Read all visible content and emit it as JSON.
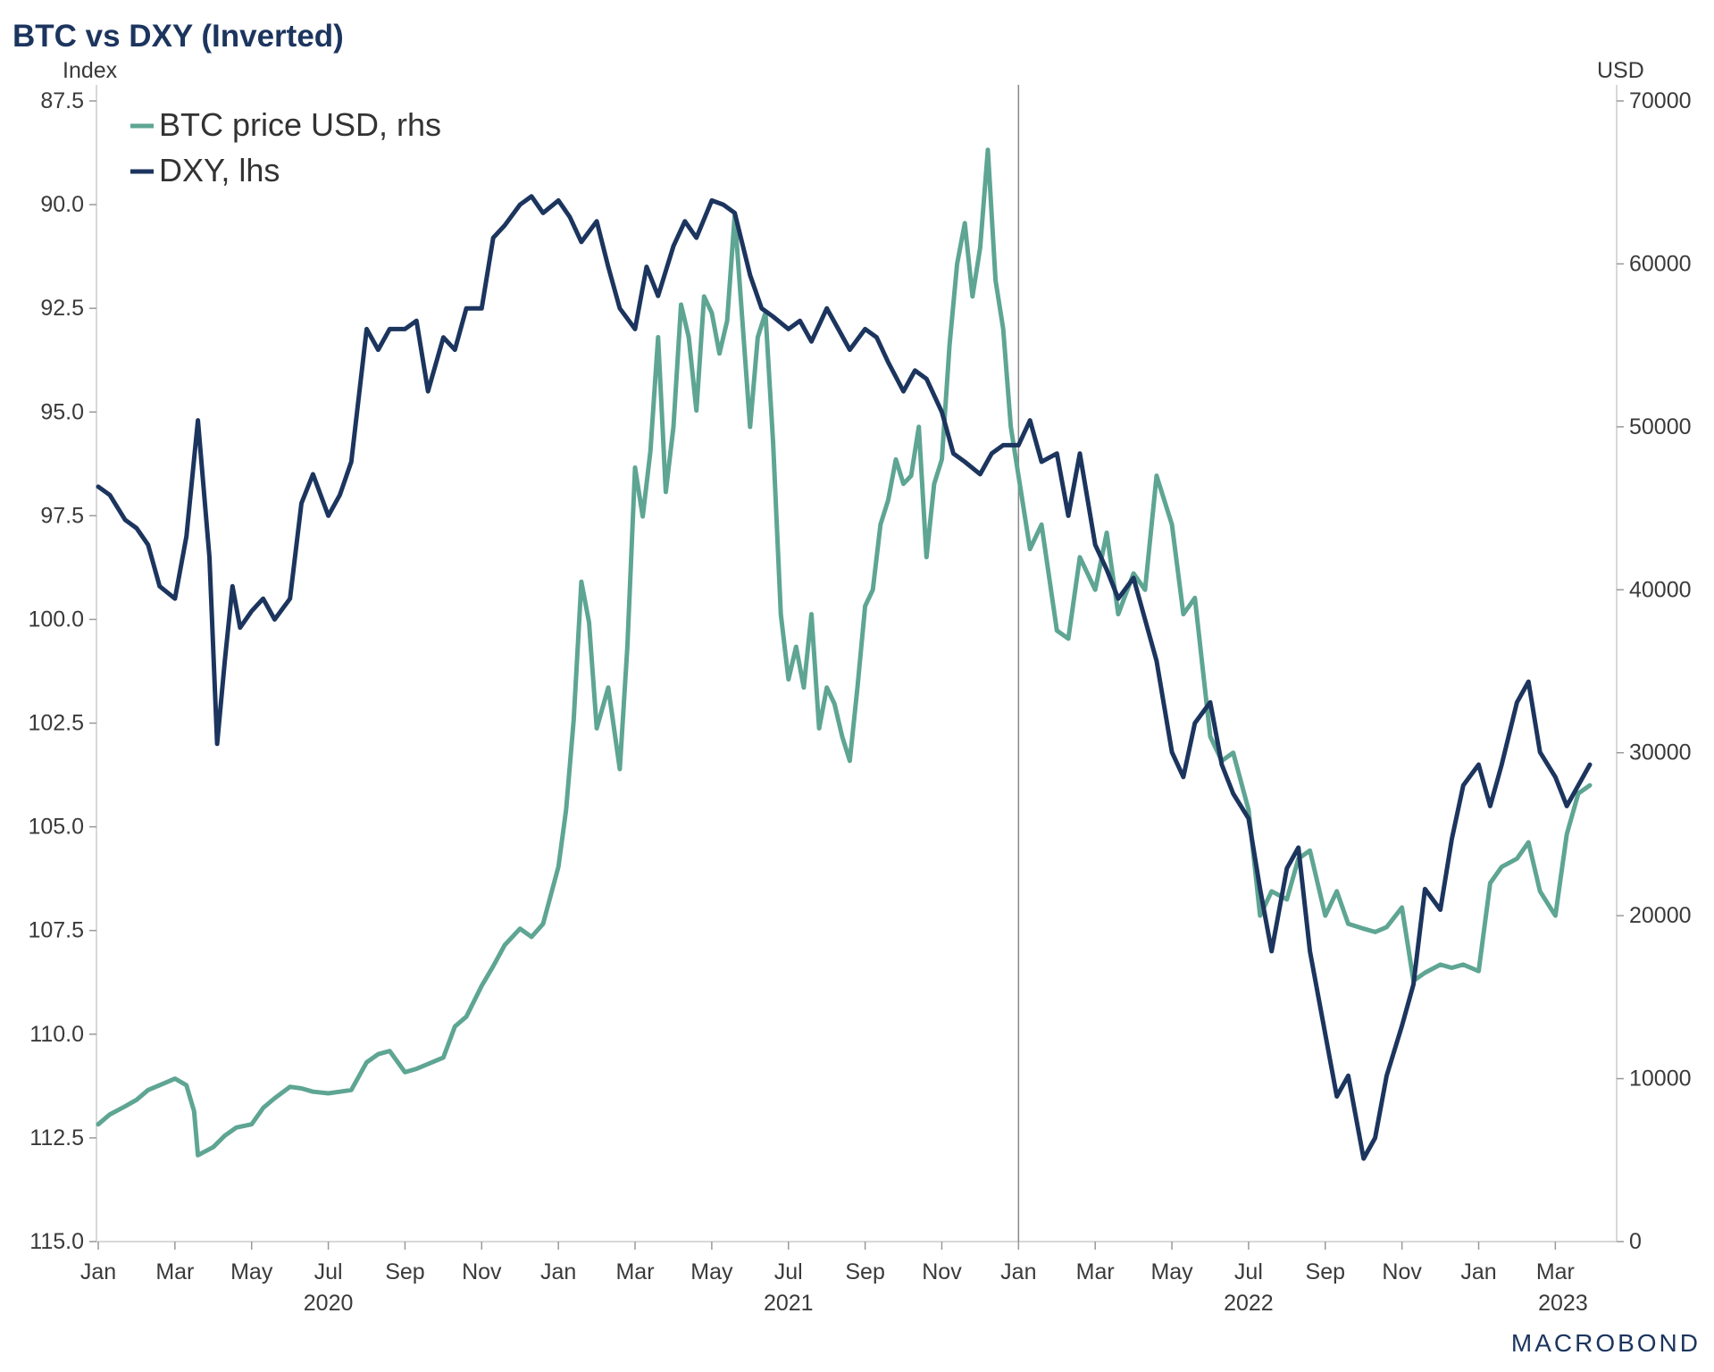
{
  "chart_data": {
    "type": "line",
    "title": "BTC vs DXY (Inverted)",
    "left_axis_label": "Index",
    "right_axis_label": "USD",
    "left_axis": {
      "min": 87.5,
      "max": 115.0,
      "inverted": true,
      "ticks": [
        "87.5",
        "90.0",
        "92.5",
        "95.0",
        "97.5",
        "100.0",
        "102.5",
        "105.0",
        "107.5",
        "110.0",
        "112.5",
        "115.0"
      ]
    },
    "right_axis": {
      "min": 0,
      "max": 70000,
      "ticks": [
        "0",
        "10000",
        "20000",
        "30000",
        "40000",
        "50000",
        "60000",
        "70000"
      ]
    },
    "x_range_months": [
      0,
      38.9
    ],
    "x_month_ticks": [
      "Jan",
      "Mar",
      "May",
      "Jul",
      "Sep",
      "Nov",
      "Jan",
      "Mar",
      "May",
      "Jul",
      "Sep",
      "Nov",
      "Jan",
      "Mar",
      "May",
      "Jul",
      "Sep",
      "Nov",
      "Jan",
      "Mar"
    ],
    "x_year_labels": [
      {
        "label": "2020",
        "month": 6
      },
      {
        "label": "2021",
        "month": 18
      },
      {
        "label": "2022",
        "month": 30
      },
      {
        "label": "2023",
        "month": 38.2
      }
    ],
    "vertical_line_month": 24,
    "legend": [
      {
        "label": "BTC price USD, rhs",
        "color": "#5ea593"
      },
      {
        "label": "DXY, lhs",
        "color": "#1c355e"
      }
    ],
    "series": [
      {
        "name": "BTC price USD, rhs",
        "axis": "right",
        "color": "#5ea593",
        "x": [
          0,
          0.3,
          0.7,
          1.0,
          1.3,
          1.6,
          2.0,
          2.3,
          2.4,
          2.5,
          2.6,
          3.0,
          3.3,
          3.6,
          4.0,
          4.3,
          4.6,
          5.0,
          5.3,
          5.6,
          6.0,
          6.3,
          6.6,
          7.0,
          7.3,
          7.6,
          8.0,
          8.3,
          8.6,
          9.0,
          9.3,
          9.6,
          10.0,
          10.3,
          10.6,
          11.0,
          11.3,
          11.6,
          12.0,
          12.2,
          12.4,
          12.6,
          12.8,
          13.0,
          13.3,
          13.6,
          13.8,
          14.0,
          14.2,
          14.4,
          14.6,
          14.8,
          15.0,
          15.2,
          15.4,
          15.6,
          15.8,
          16.0,
          16.2,
          16.4,
          16.6,
          16.8,
          17.0,
          17.2,
          17.4,
          17.6,
          17.8,
          18.0,
          18.2,
          18.4,
          18.6,
          18.8,
          19.0,
          19.2,
          19.4,
          19.6,
          19.8,
          20.0,
          20.2,
          20.4,
          20.6,
          20.8,
          21.0,
          21.2,
          21.4,
          21.6,
          21.8,
          22.0,
          22.2,
          22.4,
          22.6,
          22.8,
          23.0,
          23.2,
          23.4,
          23.6,
          23.8,
          24.0,
          24.3,
          24.6,
          25.0,
          25.3,
          25.6,
          26.0,
          26.3,
          26.6,
          27.0,
          27.3,
          27.6,
          28.0,
          28.3,
          28.6,
          29.0,
          29.3,
          29.6,
          30.0,
          30.3,
          30.6,
          31.0,
          31.3,
          31.6,
          32.0,
          32.3,
          32.6,
          33.0,
          33.3,
          33.6,
          34.0,
          34.3,
          34.6,
          35.0,
          35.3,
          35.6,
          36.0,
          36.3,
          36.6,
          37.0,
          37.3,
          37.6,
          38.0,
          38.3,
          38.6,
          38.9
        ],
        "values": [
          7200,
          7800,
          8300,
          8700,
          9300,
          9600,
          10000,
          9600,
          8800,
          8000,
          5300,
          5800,
          6500,
          7000,
          7200,
          8200,
          8800,
          9500,
          9400,
          9200,
          9100,
          9200,
          9300,
          11000,
          11500,
          11700,
          10400,
          10600,
          10900,
          11300,
          13200,
          13800,
          15700,
          16900,
          18200,
          19200,
          18700,
          19500,
          23000,
          26500,
          32000,
          40500,
          38000,
          31500,
          34000,
          29000,
          36500,
          47500,
          44500,
          48500,
          55500,
          46000,
          50000,
          57500,
          55500,
          51000,
          58000,
          57000,
          54500,
          56500,
          63000,
          56500,
          50000,
          55500,
          57000,
          49000,
          38500,
          34500,
          36500,
          34000,
          38500,
          31500,
          34000,
          33000,
          31000,
          29500,
          34000,
          39000,
          40000,
          44000,
          45500,
          48000,
          46500,
          47000,
          50000,
          42000,
          46500,
          48000,
          55000,
          60000,
          62500,
          58000,
          61000,
          67000,
          59000,
          56000,
          50000,
          47000,
          42500,
          44000,
          37500,
          37000,
          42000,
          40000,
          43500,
          38500,
          41000,
          40000,
          47000,
          44000,
          38500,
          39500,
          31000,
          29500,
          30000,
          26500,
          20000,
          21500,
          21000,
          23500,
          24000,
          20000,
          21500,
          19500,
          19200,
          19000,
          19300,
          20500,
          16000,
          16500,
          17000,
          16800,
          17000,
          16600,
          22000,
          23000,
          23500,
          24500,
          21500,
          20000,
          25000,
          27500,
          28000
        ]
      },
      {
        "name": "DXY, lhs",
        "axis": "left",
        "color": "#1c355e",
        "x": [
          0,
          0.3,
          0.7,
          1.0,
          1.3,
          1.6,
          2.0,
          2.3,
          2.6,
          2.9,
          3.1,
          3.3,
          3.5,
          3.7,
          4.0,
          4.3,
          4.6,
          5.0,
          5.3,
          5.6,
          6.0,
          6.3,
          6.6,
          7.0,
          7.3,
          7.6,
          8.0,
          8.3,
          8.6,
          9.0,
          9.3,
          9.6,
          10.0,
          10.3,
          10.6,
          11.0,
          11.3,
          11.6,
          12.0,
          12.3,
          12.6,
          13.0,
          13.3,
          13.6,
          14.0,
          14.3,
          14.6,
          15.0,
          15.3,
          15.6,
          16.0,
          16.3,
          16.6,
          17.0,
          17.3,
          17.6,
          18.0,
          18.3,
          18.6,
          19.0,
          19.3,
          19.6,
          20.0,
          20.3,
          20.6,
          21.0,
          21.3,
          21.6,
          22.0,
          22.3,
          22.6,
          23.0,
          23.3,
          23.6,
          24.0,
          24.3,
          24.6,
          25.0,
          25.3,
          25.6,
          26.0,
          26.3,
          26.6,
          27.0,
          27.3,
          27.6,
          28.0,
          28.3,
          28.6,
          29.0,
          29.3,
          29.6,
          30.0,
          30.3,
          30.6,
          31.0,
          31.3,
          31.6,
          32.0,
          32.3,
          32.6,
          33.0,
          33.3,
          33.6,
          34.0,
          34.3,
          34.6,
          35.0,
          35.3,
          35.6,
          36.0,
          36.3,
          36.6,
          37.0,
          37.3,
          37.6,
          38.0,
          38.3,
          38.6,
          38.9
        ],
        "values": [
          96.8,
          97.0,
          97.6,
          97.8,
          98.2,
          99.2,
          99.5,
          98.0,
          95.2,
          98.5,
          103.0,
          101.0,
          99.2,
          100.2,
          99.8,
          99.5,
          100.0,
          99.5,
          97.2,
          96.5,
          97.5,
          97.0,
          96.2,
          93.0,
          93.5,
          93.0,
          93.0,
          92.8,
          94.5,
          93.2,
          93.5,
          92.5,
          92.5,
          90.8,
          90.5,
          90.0,
          89.8,
          90.2,
          89.9,
          90.3,
          90.9,
          90.4,
          91.5,
          92.5,
          93.0,
          91.5,
          92.2,
          91.0,
          90.4,
          90.8,
          89.9,
          90.0,
          90.2,
          91.7,
          92.5,
          92.7,
          93.0,
          92.8,
          93.3,
          92.5,
          93.0,
          93.5,
          93.0,
          93.2,
          93.8,
          94.5,
          94.0,
          94.2,
          95.0,
          96.0,
          96.2,
          96.5,
          96.0,
          95.8,
          95.8,
          95.2,
          96.2,
          96.0,
          97.5,
          96.0,
          98.2,
          98.8,
          99.5,
          99.0,
          100.0,
          101.0,
          103.2,
          103.8,
          102.5,
          102.0,
          103.5,
          104.2,
          104.8,
          106.5,
          108.0,
          106.0,
          105.5,
          108.0,
          110.0,
          111.5,
          111.0,
          113.0,
          112.5,
          111.0,
          109.8,
          108.8,
          106.5,
          107.0,
          105.3,
          104.0,
          103.5,
          104.5,
          103.5,
          102.0,
          101.5,
          103.2,
          103.8,
          104.5,
          104.0,
          103.5
        ]
      }
    ]
  },
  "brand": {
    "logo_text": "MACROBOND"
  }
}
